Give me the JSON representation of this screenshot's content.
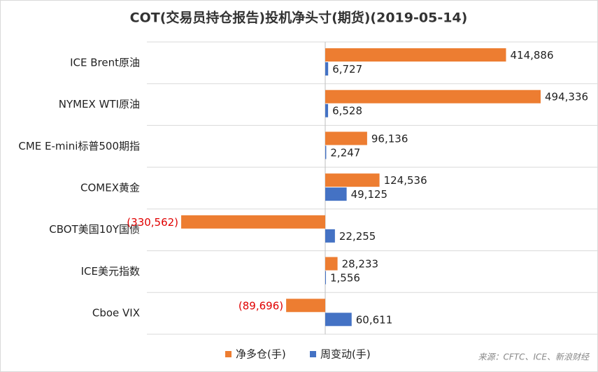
{
  "chart_data": {
    "type": "hbar",
    "title": "COT(交易员持仓报告)投机净头寸(期货)(2019-05-14)",
    "note": "来源：CFTC、ICE、新浪财经",
    "categories": [
      "ICE Brent原油",
      "NYMEX WTI原油",
      "CME E-mini标普500期指",
      "COMEX黄金",
      "CBOT美国10Y国债",
      "ICE美元指数",
      "Cboe VIX"
    ],
    "series": [
      {
        "name": "净多仓(手)",
        "color": "#ed7d31",
        "values": [
          414886,
          494336,
          96136,
          124536,
          -330562,
          28233,
          -89696
        ],
        "value_labels": [
          "414,886",
          "494,336",
          "96,136",
          "124,536",
          "(330,562)",
          "28,233",
          "(89,696)"
        ]
      },
      {
        "name": "周变动(手)",
        "color": "#4472c4",
        "values": [
          6727,
          6528,
          2247,
          49125,
          22255,
          1556,
          60611
        ],
        "value_labels": [
          "6,727",
          "6,528",
          "2,247",
          "49,125",
          "22,255",
          "1,556",
          "60,611"
        ]
      }
    ],
    "grid": true
  }
}
